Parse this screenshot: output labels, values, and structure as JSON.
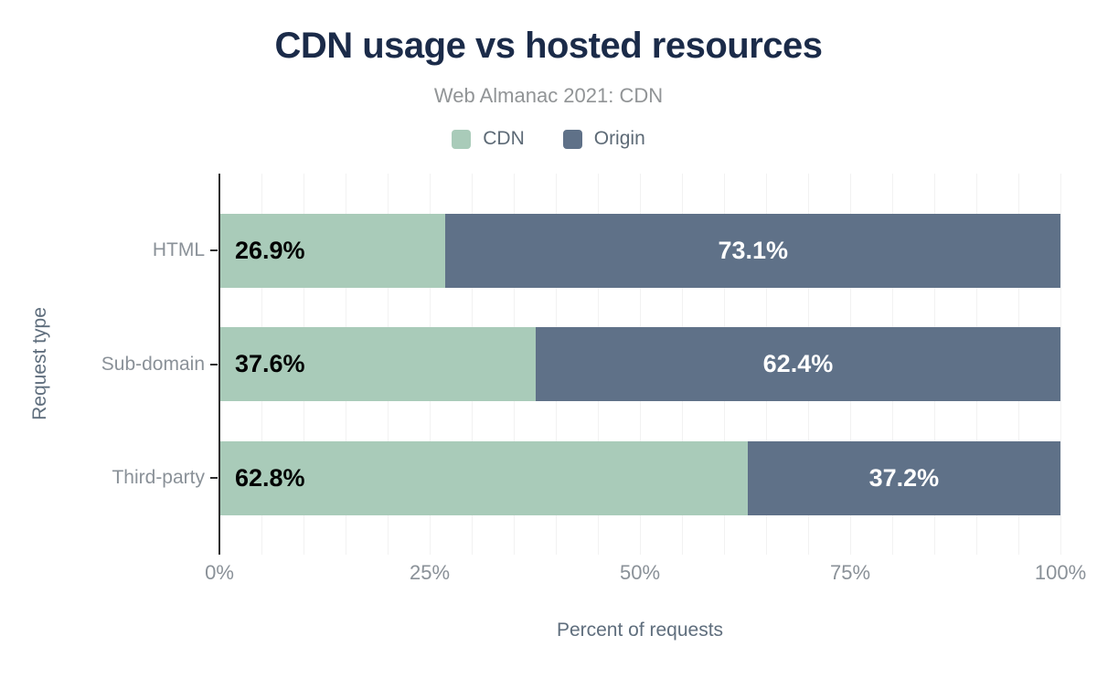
{
  "header": {
    "title": "CDN usage vs hosted resources",
    "subtitle": "Web Almanac 2021: CDN"
  },
  "chart_data": {
    "type": "bar",
    "orientation": "horizontal",
    "stacked": true,
    "title": "CDN usage vs hosted resources",
    "subtitle": "Web Almanac 2021: CDN",
    "categories": [
      "HTML",
      "Sub-domain",
      "Third-party"
    ],
    "series": [
      {
        "name": "CDN",
        "color": "#a9cbb9",
        "values": [
          26.9,
          37.6,
          62.8
        ],
        "labels": [
          "26.9%",
          "37.6%",
          "62.8%"
        ],
        "label_color": "#000000",
        "label_align": "start"
      },
      {
        "name": "Origin",
        "color": "#5f7188",
        "values": [
          73.1,
          62.4,
          37.2
        ],
        "labels": [
          "73.1%",
          "62.4%",
          "37.2%"
        ],
        "label_color": "#ffffff",
        "label_align": "center"
      }
    ],
    "xlabel": "Percent of requests",
    "ylabel": "Request type",
    "x_ticks": [
      {
        "value": 0,
        "label": "0%"
      },
      {
        "value": 25,
        "label": "25%"
      },
      {
        "value": 50,
        "label": "50%"
      },
      {
        "value": 75,
        "label": "75%"
      },
      {
        "value": 100,
        "label": "100%"
      }
    ],
    "xlim": [
      0,
      100
    ],
    "grid": true,
    "grid_interval": 5,
    "legend_position": "top"
  },
  "colors": {
    "background": "#ffffff",
    "title": "#1b2b49",
    "subtitle": "#919496",
    "axis_title": "#5f6e7d",
    "tick_label": "#8a9198",
    "category_label": "#8a9198",
    "grid_line": "#f2f2f2",
    "axis_line": "#2e2e2e"
  }
}
